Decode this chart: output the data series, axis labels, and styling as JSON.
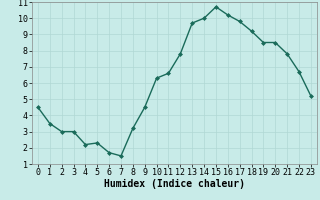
{
  "x": [
    0,
    1,
    2,
    3,
    4,
    5,
    6,
    7,
    8,
    9,
    10,
    11,
    12,
    13,
    14,
    15,
    16,
    17,
    18,
    19,
    20,
    21,
    22,
    23
  ],
  "y": [
    4.5,
    3.5,
    3.0,
    3.0,
    2.2,
    2.3,
    1.7,
    1.5,
    3.2,
    4.5,
    6.3,
    6.6,
    7.8,
    9.7,
    10.0,
    10.7,
    10.2,
    9.8,
    9.2,
    8.5,
    8.5,
    7.8,
    6.7,
    5.2
  ],
  "line_color": "#1a6b5a",
  "marker": "D",
  "marker_size": 2.0,
  "bg_color": "#c8ebe8",
  "grid_color": "#b0d8d4",
  "xlabel": "Humidex (Indice chaleur)",
  "xlabel_fontsize": 7,
  "tick_fontsize": 6,
  "xlim": [
    -0.5,
    23.5
  ],
  "ylim": [
    1,
    11
  ],
  "yticks": [
    1,
    2,
    3,
    4,
    5,
    6,
    7,
    8,
    9,
    10,
    11
  ],
  "xticks": [
    0,
    1,
    2,
    3,
    4,
    5,
    6,
    7,
    8,
    9,
    10,
    11,
    12,
    13,
    14,
    15,
    16,
    17,
    18,
    19,
    20,
    21,
    22,
    23
  ]
}
